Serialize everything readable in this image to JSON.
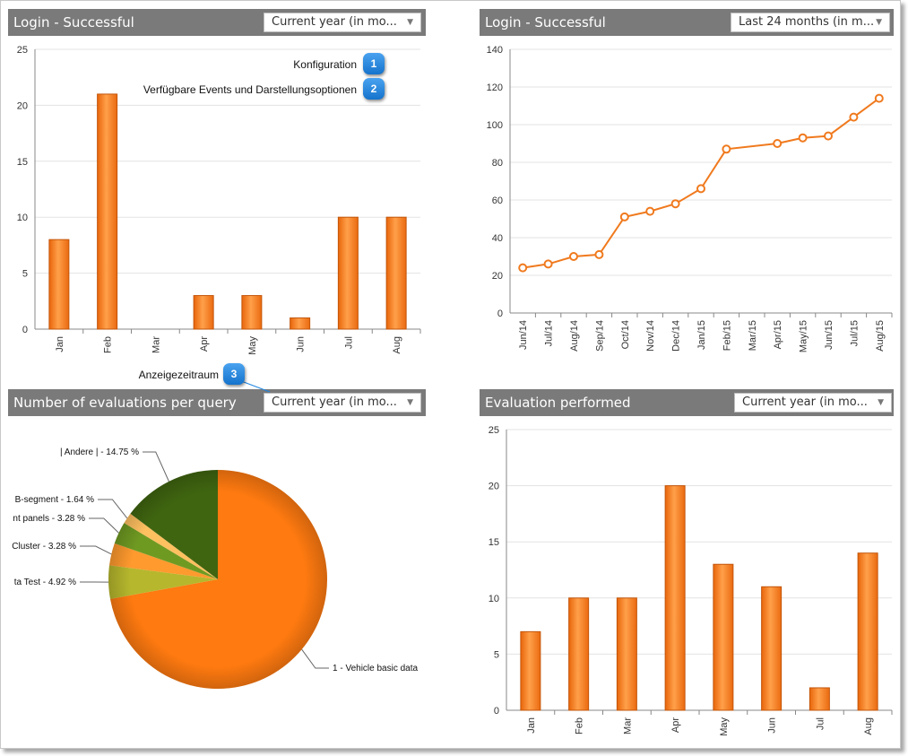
{
  "panels": {
    "top_left": {
      "title": "Login - Successful",
      "selector": "Current year (in mo..."
    },
    "top_right": {
      "title": "Login - Successful",
      "selector": "Last 24 months (in m..."
    },
    "bottom_left": {
      "title": "Number of evaluations per query",
      "selector": "Current year (in mo..."
    },
    "bottom_right": {
      "title": "Evaluation performed",
      "selector": "Current year (in mo..."
    }
  },
  "callouts": [
    {
      "number": "1",
      "text": "Konfiguration"
    },
    {
      "number": "2",
      "text": "Verfügbare Events und Darstellungsoptionen"
    },
    {
      "number": "3",
      "text": "Anzeigezeitraum"
    }
  ],
  "colors": {
    "accent": "#f07a1e",
    "header": "#7a7a7a",
    "badge": "#1f86e0"
  },
  "chart_data": [
    {
      "type": "bar",
      "id": "login_bar",
      "title": "Login - Successful",
      "categories": [
        "Jan",
        "Feb",
        "Mar",
        "Apr",
        "May",
        "Jun",
        "Jul",
        "Aug"
      ],
      "values": [
        8,
        21,
        0,
        3,
        3,
        1,
        10,
        10
      ],
      "ylim": [
        0,
        25
      ],
      "yticks": [
        0,
        5,
        10,
        15,
        20,
        25
      ]
    },
    {
      "type": "line",
      "id": "login_line",
      "title": "Login - Successful",
      "categories": [
        "Jun/14",
        "Jul/14",
        "Aug/14",
        "Sep/14",
        "Oct/14",
        "Nov/14",
        "Dec/14",
        "Jan/15",
        "Feb/15",
        "Mar/15",
        "Apr/15",
        "May/15",
        "Jun/15",
        "Jul/15",
        "Aug/15"
      ],
      "values": [
        24,
        26,
        30,
        31,
        51,
        54,
        58,
        66,
        87,
        null,
        90,
        93,
        94,
        104,
        114
      ],
      "ylim": [
        0,
        140
      ],
      "yticks": [
        0,
        20,
        40,
        60,
        80,
        100,
        120,
        140
      ]
    },
    {
      "type": "pie",
      "id": "eval_pie",
      "title": "Number of evaluations per query",
      "slices": [
        {
          "label": "1 - Vehicle basic data",
          "percent": 72.13,
          "color": "#ff7a10"
        },
        {
          "label": "ta Test - 4.92 %",
          "percent": 4.92,
          "color": "#b6b72d"
        },
        {
          "label": "Cluster - 3.28 %",
          "percent": 3.28,
          "color": "#ff9a2e"
        },
        {
          "label": "nt panels - 3.28 %",
          "percent": 3.28,
          "color": "#6f9a22"
        },
        {
          "label": "B-segment - 1.64 %",
          "percent": 1.64,
          "color": "#ffc060"
        },
        {
          "label": "| Andere | - 14.75 %",
          "percent": 14.75,
          "color": "#3f6510"
        }
      ]
    },
    {
      "type": "bar",
      "id": "eval_bar",
      "title": "Evaluation performed",
      "categories": [
        "Jan",
        "Feb",
        "Mar",
        "Apr",
        "May",
        "Jun",
        "Jul",
        "Aug"
      ],
      "values": [
        7,
        10,
        10,
        20,
        13,
        11,
        2,
        14
      ],
      "ylim": [
        0,
        25
      ],
      "yticks": [
        0,
        5,
        10,
        15,
        20,
        25
      ]
    }
  ]
}
